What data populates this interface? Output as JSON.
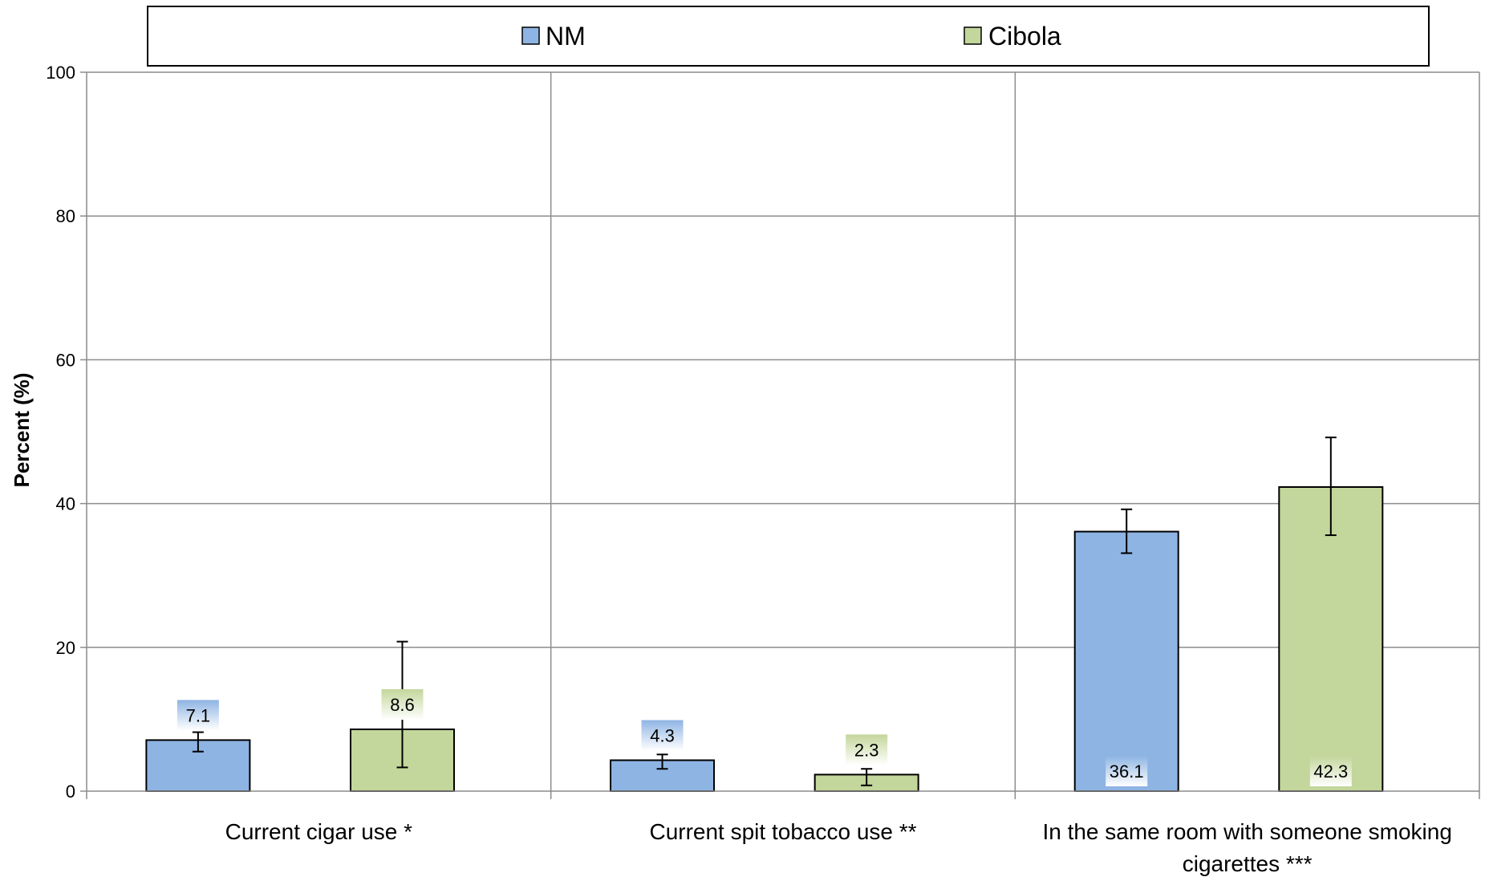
{
  "chart_data": {
    "type": "bar",
    "ylabel": "Percent (%)",
    "ylim": [
      0,
      100
    ],
    "yticks": [
      0,
      20,
      40,
      60,
      80,
      100
    ],
    "grid": true,
    "legend_position": "top",
    "categories": [
      [
        "Current cigar use *"
      ],
      [
        "Current spit tobacco use **"
      ],
      [
        "In the same room with someone smoking",
        "cigarettes ***"
      ]
    ],
    "series": [
      {
        "name": "NM",
        "color": "#8eb4e3",
        "values": [
          7.1,
          4.3,
          36.1
        ],
        "error_low": [
          5.5,
          3.1,
          33.1
        ],
        "error_high": [
          8.2,
          5.1,
          39.2
        ]
      },
      {
        "name": "Cibola",
        "color": "#c3d69b",
        "values": [
          8.6,
          2.3,
          42.3
        ],
        "error_low": [
          3.3,
          0.8,
          35.6
        ],
        "error_high": [
          20.8,
          3.1,
          49.2
        ]
      }
    ],
    "data_labels": [
      [
        "7.1",
        "4.3",
        "36.1"
      ],
      [
        "8.6",
        "2.3",
        "42.3"
      ]
    ]
  }
}
